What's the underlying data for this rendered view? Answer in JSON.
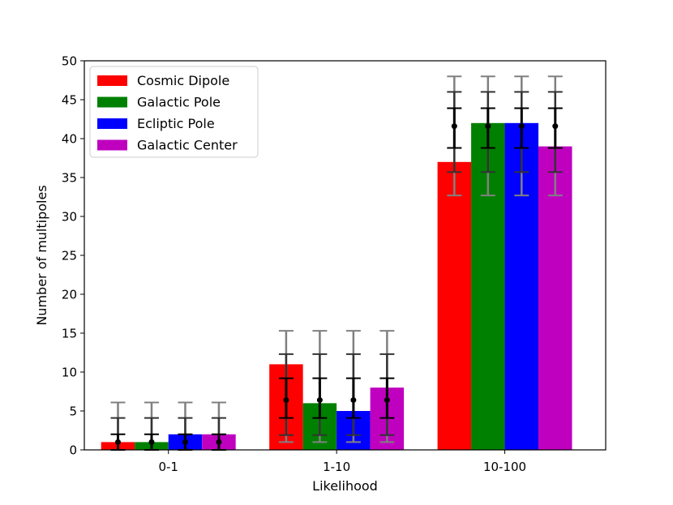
{
  "chart_data": {
    "type": "bar",
    "title": "",
    "xlabel": "Likelihood",
    "ylabel": "Number of multipoles",
    "categories": [
      "0-1",
      "1-10",
      "10-100"
    ],
    "ylim": [
      0,
      50
    ],
    "yticks": [
      0,
      5,
      10,
      15,
      20,
      25,
      30,
      35,
      40,
      45,
      50
    ],
    "grid": false,
    "legend_position": "top-left",
    "series": [
      {
        "name": "Cosmic Dipole",
        "color": "#ff0000",
        "values": [
          1,
          11,
          37
        ]
      },
      {
        "name": "Galactic Pole",
        "color": "#008000",
        "values": [
          1,
          6,
          42
        ]
      },
      {
        "name": "Ecliptic Pole",
        "color": "#0000ff",
        "values": [
          2,
          5,
          42
        ]
      },
      {
        "name": "Galactic Center",
        "color": "#bf00bf",
        "values": [
          2,
          8,
          39
        ]
      }
    ],
    "error_bars": {
      "mean": [
        1.0,
        6.4,
        41.6
      ],
      "inner": [
        [
          0.0,
          2.0
        ],
        [
          4.1,
          9.2
        ],
        [
          38.8,
          43.9
        ]
      ],
      "middle": [
        [
          0.0,
          4.1
        ],
        [
          1.9,
          12.3
        ],
        [
          35.7,
          46.0
        ]
      ],
      "outer": [
        [
          0.0,
          6.1
        ],
        [
          1.0,
          15.3
        ],
        [
          32.7,
          48.0
        ]
      ],
      "colors": {
        "inner": "#000000",
        "middle": "#333333",
        "outer": "#808080"
      }
    }
  }
}
